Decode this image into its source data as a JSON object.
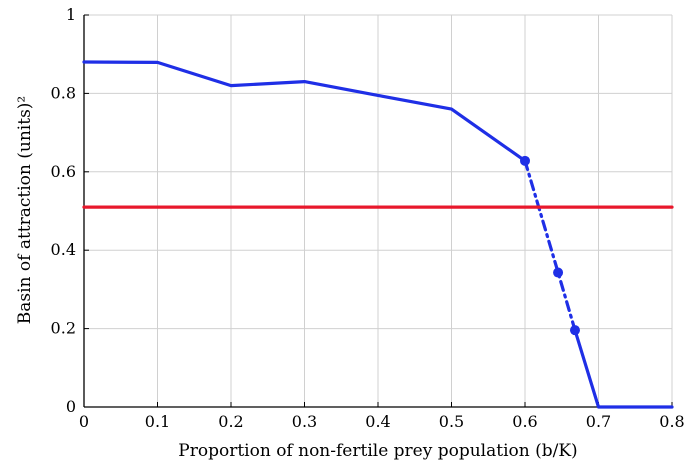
{
  "chart_data": {
    "type": "line",
    "xlabel": "Proportion of non-fertile prey population (b/K)",
    "ylabel": "Basin of attraction (units)²",
    "xlim": [
      0,
      0.8
    ],
    "ylim": [
      0,
      1
    ],
    "x_ticks": [
      "0",
      "0.1",
      "0.2",
      "0.3",
      "0.4",
      "0.5",
      "0.6",
      "0.7",
      "0.8"
    ],
    "y_ticks": [
      "0",
      "0.2",
      "0.4",
      "0.6",
      "0.8",
      "1"
    ],
    "grid": true,
    "series": [
      {
        "style": "solid",
        "color": "#1f2fe6",
        "x": [
          0,
          0.1,
          0.2,
          0.3,
          0.4,
          0.5,
          0.6
        ],
        "y": [
          0.88,
          0.879,
          0.82,
          0.83,
          0.795,
          0.76,
          0.628
        ]
      },
      {
        "style": "dashdot",
        "color": "#1f2fe6",
        "x": [
          0.6,
          0.645,
          0.668
        ],
        "y": [
          0.628,
          0.343,
          0.196
        ],
        "markers": true
      },
      {
        "style": "solid",
        "color": "#1f2fe6",
        "x": [
          0.668,
          0.7,
          0.8
        ],
        "y": [
          0.196,
          0.0,
          0.0
        ]
      },
      {
        "style": "solid",
        "color": "#e8182c",
        "x": [
          0,
          0.8
        ],
        "y": [
          0.51,
          0.51
        ]
      }
    ]
  }
}
